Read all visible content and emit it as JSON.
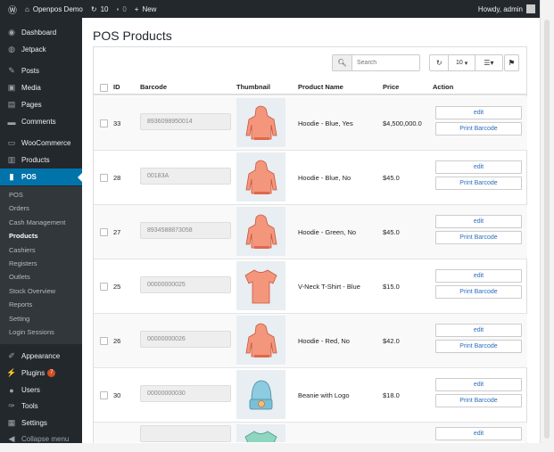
{
  "adminbar": {
    "site": "Openpos Demo",
    "updates": "10",
    "comments": "0",
    "new": "New",
    "howdy": "Howdy, admin"
  },
  "sidebar": {
    "items": [
      {
        "label": "Dashboard",
        "icon": "dashboard-icon"
      },
      {
        "label": "Jetpack",
        "icon": "jetpack-icon"
      },
      {
        "label": "Posts",
        "icon": "pin-icon"
      },
      {
        "label": "Media",
        "icon": "media-icon"
      },
      {
        "label": "Pages",
        "icon": "pages-icon"
      },
      {
        "label": "Comments",
        "icon": "comments-icon"
      },
      {
        "label": "WooCommerce",
        "icon": "woocommerce-icon"
      },
      {
        "label": "Products",
        "icon": "products-icon"
      },
      {
        "label": "POS",
        "icon": "pos-icon"
      },
      {
        "label": "Appearance",
        "icon": "brush-icon"
      },
      {
        "label": "Plugins",
        "icon": "plugin-icon",
        "badge": "7"
      },
      {
        "label": "Users",
        "icon": "users-icon"
      },
      {
        "label": "Tools",
        "icon": "wrench-icon"
      },
      {
        "label": "Settings",
        "icon": "settings-icon"
      },
      {
        "label": "Collapse menu",
        "icon": "collapse-icon"
      }
    ],
    "submenu": [
      "POS",
      "Orders",
      "Cash Management",
      "Products",
      "Cashiers",
      "Registers",
      "Outlets",
      "Stock Overview",
      "Reports",
      "Setting",
      "Login Sessions"
    ],
    "active_submenu": "Products"
  },
  "page": {
    "title": "POS Products"
  },
  "toolbar": {
    "search_placeholder": "Search",
    "page_size": "10"
  },
  "table": {
    "headers": {
      "id": "ID",
      "barcode": "Barcode",
      "thumbnail": "Thumbnail",
      "name": "Product Name",
      "price": "Price",
      "action": "Action"
    },
    "edit_label": "edit",
    "print_label": "Print Barcode",
    "rows": [
      {
        "id": "33",
        "barcode": "8936098950014",
        "name": "Hoodie - Blue, Yes",
        "price": "$4,500,000.0",
        "thumb": "hoodie"
      },
      {
        "id": "28",
        "barcode": "00183A",
        "name": "Hoodie - Blue, No",
        "price": "$45.0",
        "thumb": "hoodie"
      },
      {
        "id": "27",
        "barcode": "8934588873058",
        "name": "Hoodie - Green, No",
        "price": "$45.0",
        "thumb": "hoodie"
      },
      {
        "id": "25",
        "barcode": "00000000025",
        "name": "V-Neck T-Shirt - Blue",
        "price": "$15.0",
        "thumb": "tshirt"
      },
      {
        "id": "26",
        "barcode": "00000000026",
        "name": "Hoodie - Red, No",
        "price": "$42.0",
        "thumb": "hoodie"
      },
      {
        "id": "30",
        "barcode": "00000000030",
        "name": "Beanie with Logo",
        "price": "$18.0",
        "thumb": "beanie"
      },
      {
        "id": "",
        "barcode": "",
        "name": "",
        "price": "",
        "thumb": "tshirt-green"
      }
    ]
  },
  "colors": {
    "adminbar": "#23282d",
    "active": "#0073aa",
    "link": "#2a6ebb",
    "product": "#f0866a"
  }
}
